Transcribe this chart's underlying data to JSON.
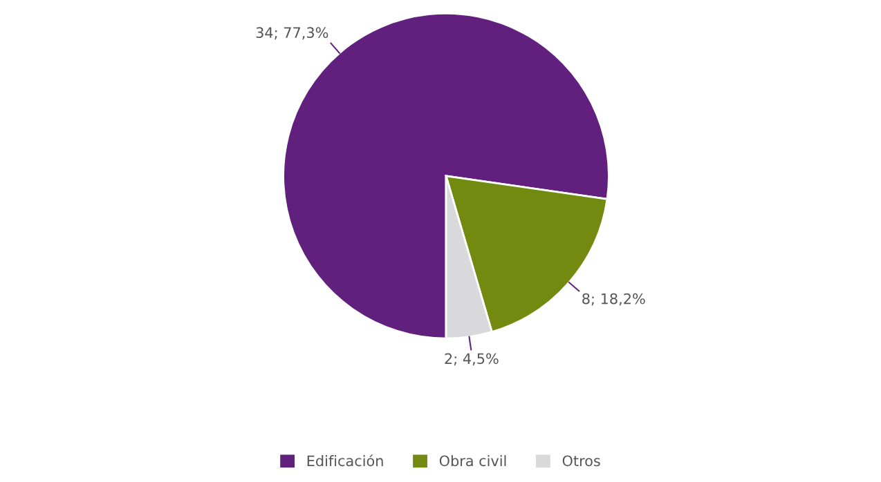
{
  "chart_data": {
    "type": "pie",
    "categories": [
      "Edificación",
      "Obra civil",
      "Otros"
    ],
    "values": [
      34,
      8,
      2
    ],
    "value_labels": [
      "34; 77,3%",
      "8; 18,2%",
      "2; 4,5%"
    ],
    "colors": [
      "#61207d",
      "#728a10",
      "#d9d9db"
    ],
    "legend": "bottom"
  }
}
